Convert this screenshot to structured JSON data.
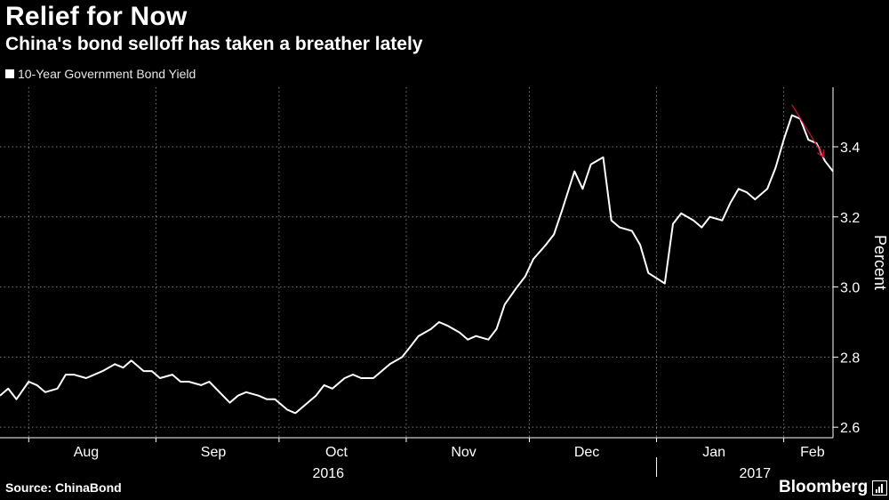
{
  "title": "Relief for Now",
  "subtitle": "China's bond selloff has taken a breather lately",
  "legend_label": "10-Year Government Bond Yield",
  "source": "Source: ChinaBond",
  "brand": "Bloomberg",
  "brand_icon": "bar-chart-icon",
  "colors": {
    "background": "#000000",
    "line": "#ffffff",
    "arrow": "#c8102e",
    "grid": "#7a7a7a"
  },
  "chart_data": {
    "type": "line",
    "title": "Relief for Now",
    "subtitle": "China's bond selloff has taken a breather lately",
    "ylabel": "Percent",
    "ylim": [
      2.57,
      3.57
    ],
    "y_ticks": [
      2.6,
      2.8,
      3.0,
      3.2,
      3.4
    ],
    "y_tick_labels": [
      "2.6",
      "2.8",
      "3.0",
      "3.2",
      "3.4"
    ],
    "x_range": [
      "2016-07-25",
      "2017-02-13"
    ],
    "month_ticks": [
      "2016-08-01",
      "2016-09-01",
      "2016-10-01",
      "2016-11-01",
      "2016-12-01",
      "2017-01-01",
      "2017-02-01"
    ],
    "month_labels": [
      {
        "label": "Aug",
        "date": "2016-08-15"
      },
      {
        "label": "Sep",
        "date": "2016-09-15"
      },
      {
        "label": "Oct",
        "date": "2016-10-15"
      },
      {
        "label": "Nov",
        "date": "2016-11-15"
      },
      {
        "label": "Dec",
        "date": "2016-12-15"
      },
      {
        "label": "Jan",
        "date": "2017-01-15"
      },
      {
        "label": "Feb",
        "date": "2017-02-08"
      }
    ],
    "year_labels": [
      {
        "label": "2016",
        "date": "2016-10-13"
      },
      {
        "label": "2017",
        "date": "2017-01-25"
      }
    ],
    "year_divider": "2017-01-01",
    "grid": true,
    "legend_position": "top-left",
    "series": [
      {
        "name": "10-Year Government Bond Yield",
        "x": [
          "2016-07-25",
          "2016-07-27",
          "2016-07-29",
          "2016-08-01",
          "2016-08-03",
          "2016-08-05",
          "2016-08-08",
          "2016-08-10",
          "2016-08-12",
          "2016-08-15",
          "2016-08-17",
          "2016-08-19",
          "2016-08-22",
          "2016-08-24",
          "2016-08-26",
          "2016-08-29",
          "2016-08-31",
          "2016-09-02",
          "2016-09-05",
          "2016-09-07",
          "2016-09-09",
          "2016-09-12",
          "2016-09-14",
          "2016-09-19",
          "2016-09-21",
          "2016-09-23",
          "2016-09-26",
          "2016-09-28",
          "2016-09-30",
          "2016-10-03",
          "2016-10-05",
          "2016-10-07",
          "2016-10-10",
          "2016-10-12",
          "2016-10-14",
          "2016-10-17",
          "2016-10-19",
          "2016-10-21",
          "2016-10-24",
          "2016-10-26",
          "2016-10-28",
          "2016-10-31",
          "2016-11-02",
          "2016-11-04",
          "2016-11-07",
          "2016-11-09",
          "2016-11-11",
          "2016-11-14",
          "2016-11-16",
          "2016-11-18",
          "2016-11-21",
          "2016-11-23",
          "2016-11-25",
          "2016-11-28",
          "2016-11-30",
          "2016-12-02",
          "2016-12-05",
          "2016-12-07",
          "2016-12-09",
          "2016-12-12",
          "2016-12-14",
          "2016-12-16",
          "2016-12-19",
          "2016-12-21",
          "2016-12-23",
          "2016-12-26",
          "2016-12-28",
          "2016-12-30",
          "2017-01-03",
          "2017-01-05",
          "2017-01-07",
          "2017-01-10",
          "2017-01-12",
          "2017-01-14",
          "2017-01-17",
          "2017-01-19",
          "2017-01-21",
          "2017-01-23",
          "2017-01-25",
          "2017-01-28",
          "2017-01-30",
          "2017-02-01",
          "2017-02-03",
          "2017-02-05",
          "2017-02-07",
          "2017-02-09",
          "2017-02-11",
          "2017-02-13"
        ],
        "y": [
          2.69,
          2.71,
          2.68,
          2.73,
          2.72,
          2.7,
          2.71,
          2.75,
          2.75,
          2.74,
          2.75,
          2.76,
          2.78,
          2.77,
          2.79,
          2.76,
          2.76,
          2.74,
          2.75,
          2.73,
          2.73,
          2.72,
          2.73,
          2.67,
          2.69,
          2.7,
          2.69,
          2.68,
          2.68,
          2.65,
          2.64,
          2.66,
          2.69,
          2.72,
          2.71,
          2.74,
          2.75,
          2.74,
          2.74,
          2.76,
          2.78,
          2.8,
          2.83,
          2.86,
          2.88,
          2.9,
          2.89,
          2.87,
          2.85,
          2.86,
          2.85,
          2.88,
          2.95,
          3.0,
          3.03,
          3.08,
          3.12,
          3.15,
          3.22,
          3.33,
          3.28,
          3.35,
          3.37,
          3.19,
          3.17,
          3.16,
          3.12,
          3.04,
          3.01,
          3.18,
          3.21,
          3.19,
          3.17,
          3.2,
          3.19,
          3.24,
          3.28,
          3.27,
          3.25,
          3.28,
          3.34,
          3.42,
          3.49,
          3.48,
          3.42,
          3.41,
          3.36,
          3.33
        ]
      }
    ],
    "annotation": {
      "type": "arrow",
      "from_date": "2017-02-03",
      "from_y": 3.52,
      "to_date": "2017-02-13",
      "to_y": 3.37
    }
  }
}
